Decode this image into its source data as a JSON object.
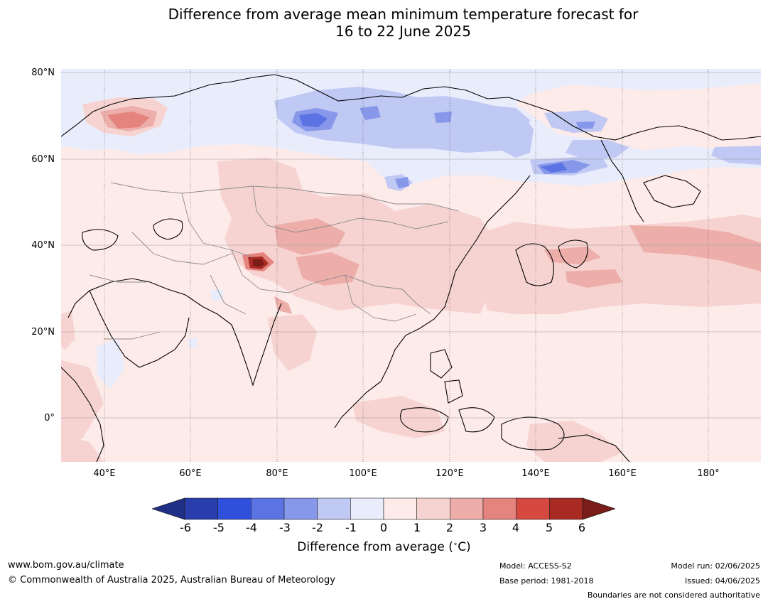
{
  "title": {
    "line1": "Difference from average mean minimum temperature forecast for",
    "line2": "16 to 22 June 2025"
  },
  "map": {
    "lat_labels": [
      "80°N",
      "60°N",
      "40°N",
      "20°N",
      "0°"
    ],
    "lon_labels": [
      "40°E",
      "60°E",
      "80°E",
      "100°E",
      "120°E",
      "140°E",
      "160°E",
      "180°"
    ],
    "lon_range": [
      30,
      192
    ],
    "lat_range": [
      -10,
      81
    ],
    "grid": true
  },
  "colorbar": {
    "title": "Difference from average ($^\\circ$C)",
    "title_display": "Difference from average (",
    "title_unit": "C)",
    "ticks": [
      "-6",
      "-5",
      "-4",
      "-3",
      "-2",
      "-1",
      "0",
      "1",
      "2",
      "3",
      "4",
      "5",
      "6"
    ],
    "colors": [
      "#1f2f86",
      "#283ead",
      "#2f4fdd",
      "#5b73e3",
      "#8797ea",
      "#c0c8f4",
      "#e9ecfb",
      "#fdebe9",
      "#f6d3d1",
      "#edaeaa",
      "#e5837e",
      "#d54940",
      "#a82a22",
      "#7a1c17"
    ]
  },
  "footer": {
    "website": "www.bom.gov.au/climate",
    "copyright": "© Commonwealth of Australia 2025, Australian Bureau of Meteorology",
    "model": "Model: ACCESS-S2",
    "base_period": "Base period: 1981-2018",
    "model_run": "Model run: 02/06/2025",
    "issued": "Issued: 04/06/2025",
    "disclaimer": "Boundaries are not considered authoritative"
  }
}
